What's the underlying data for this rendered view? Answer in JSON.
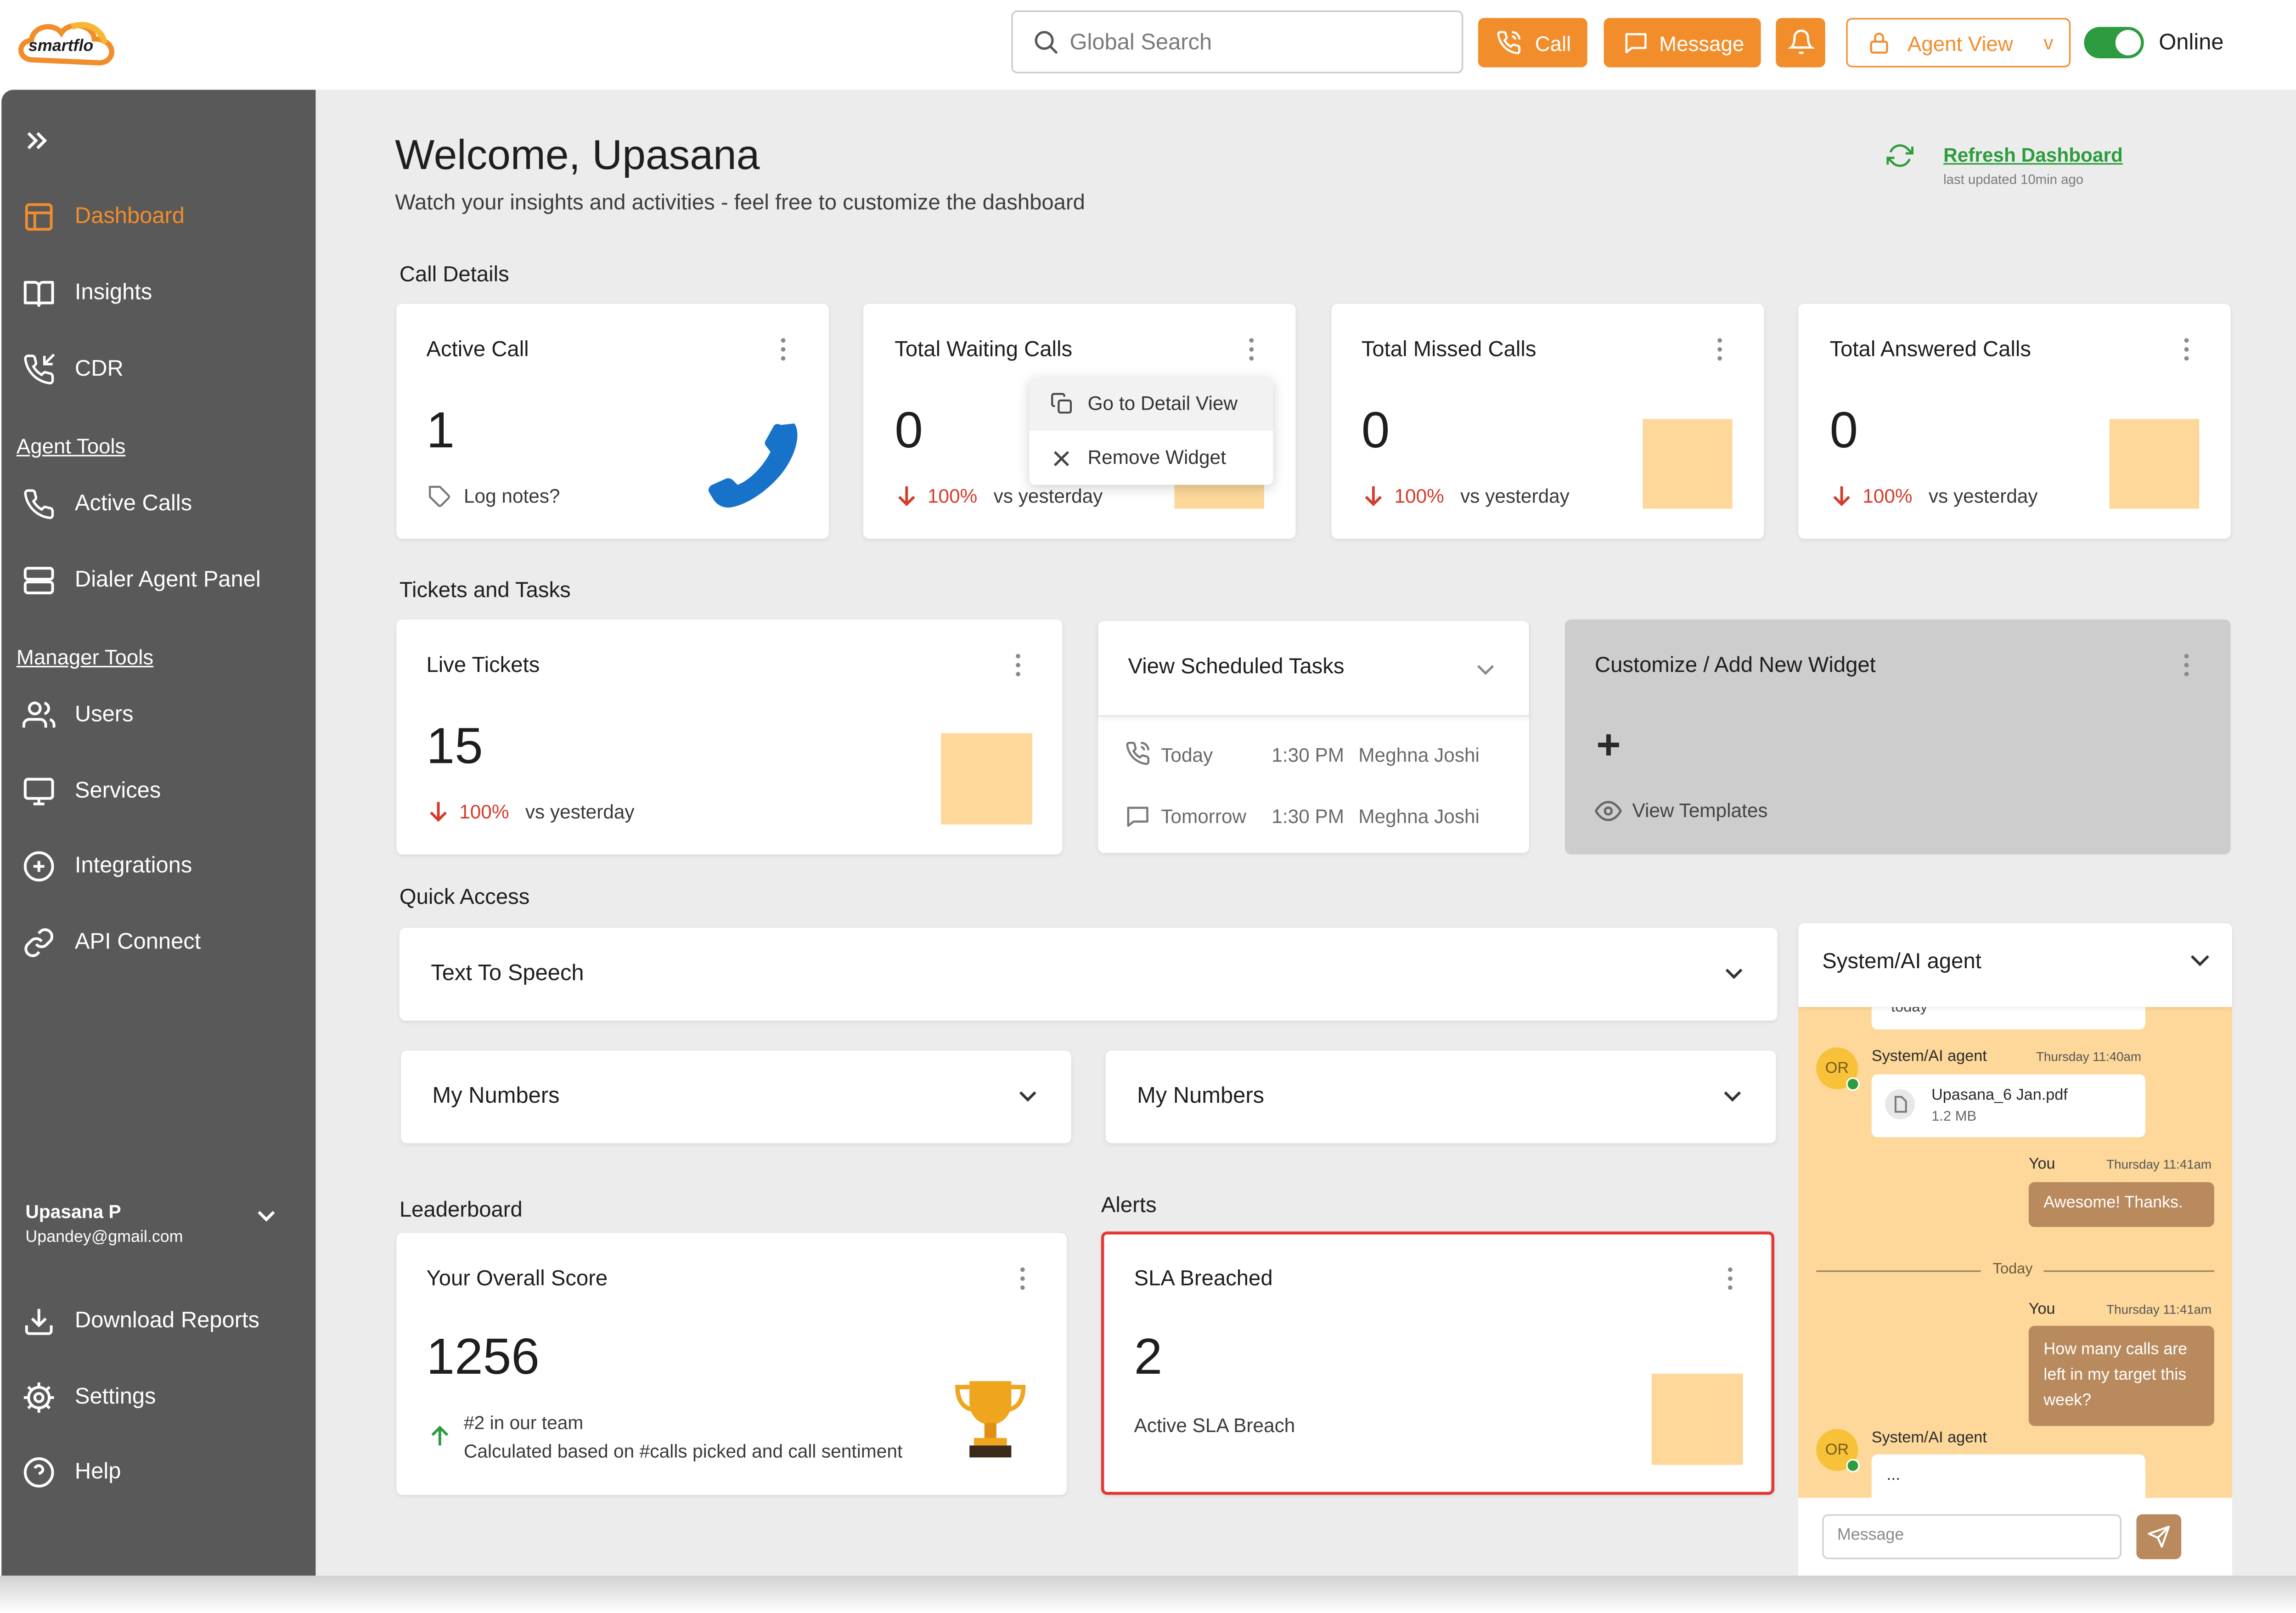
{
  "brand": {
    "logo_text": "smartflo",
    "accent": "#f28d2b",
    "sidebar_bg": "#595959",
    "placeholder_color": "#fdd89a",
    "chat_bg": "#fdd89a",
    "bubble_color": "#b98a5e",
    "online_color": "#2c9c3e",
    "alert_color": "#e53935"
  },
  "topbar": {
    "search_placeholder": "Global Search",
    "call_label": "Call",
    "message_label": "Message",
    "agent_view_label": "Agent View",
    "agent_view_caret": "v",
    "status_label": "Online"
  },
  "sidebar": {
    "items": [
      {
        "label": "Dashboard",
        "icon": "layout-icon",
        "active": true
      },
      {
        "label": "Insights",
        "icon": "book-icon"
      },
      {
        "label": "CDR",
        "icon": "phone-incoming-icon"
      },
      {
        "label": "Active Calls",
        "icon": "phone-icon"
      },
      {
        "label": "Dialer Agent Panel",
        "icon": "server-icon"
      },
      {
        "label": "Users",
        "icon": "users-icon"
      },
      {
        "label": "Services",
        "icon": "monitor-icon"
      },
      {
        "label": "Integrations",
        "icon": "plus-circle-icon"
      },
      {
        "label": "API Connect",
        "icon": "link-icon"
      }
    ],
    "section_agent_tools": "Agent Tools",
    "section_manager_tools": "Manager Tools",
    "user_name": "Upasana P",
    "user_email": "Upandey@gmail.com",
    "bottom_items": [
      {
        "label": "Download Reports",
        "icon": "download-icon"
      },
      {
        "label": "Settings",
        "icon": "gear-icon"
      },
      {
        "label": "Help",
        "icon": "help-icon"
      }
    ]
  },
  "header": {
    "welcome": "Welcome, Upasana",
    "subtitle": "Watch your insights and activities - feel free to customize the dashboard",
    "refresh_label": "Refresh Dashboard",
    "last_updated": "last updated 10min ago"
  },
  "call_details": {
    "section_title": "Call Details",
    "cards": [
      {
        "title": "Active Call",
        "value": "1",
        "footer": "Log notes?"
      },
      {
        "title": "Total Waiting Calls",
        "value": "0",
        "pct": "100%",
        "vs": "vs yesterday"
      },
      {
        "title": "Total Missed Calls",
        "value": "0",
        "pct": "100%",
        "vs": "vs yesterday"
      },
      {
        "title": "Total Answered Calls",
        "value": "0",
        "pct": "100%",
        "vs": "vs yesterday"
      }
    ],
    "context_menu": {
      "go_detail": "Go to Detail View",
      "remove": "Remove Widget"
    }
  },
  "tickets_tasks": {
    "section_title": "Tickets and Tasks",
    "live_tickets": {
      "title": "Live Tickets",
      "value": "15",
      "pct": "100%",
      "vs": "vs yesterday"
    },
    "scheduled": {
      "title": "View Scheduled Tasks",
      "rows": [
        {
          "day": "Today",
          "time": "1:30 PM",
          "name": "Meghna Joshi",
          "icon": "phone-call-icon"
        },
        {
          "day": "Tomorrow",
          "time": "1:30 PM",
          "name": "Meghna Joshi",
          "icon": "chat-icon"
        }
      ]
    },
    "customize": {
      "title": "Customize / Add New Widget",
      "plus": "+",
      "templates": "View Templates"
    }
  },
  "quick_access": {
    "section_title": "Quick Access",
    "tts": "Text To Speech",
    "numbers_left": "My Numbers",
    "numbers_right": "My Numbers"
  },
  "leaderboard": {
    "section_title": "Leaderboard",
    "title": "Your Overall Score",
    "value": "1256",
    "rank": "#2 in our team",
    "note": "Calculated based on #calls picked and call sentiment"
  },
  "alerts": {
    "section_title": "Alerts",
    "title": "SLA Breached",
    "value": "2",
    "caption": "Active SLA Breach"
  },
  "chat": {
    "title": "System/AI agent",
    "cut_text": "today",
    "msg1": {
      "avatar": "OR",
      "sender": "System/AI agent",
      "time": "Thursday 11:40am",
      "file_name": "Upasana_6 Jan.pdf",
      "file_size": "1.2 MB"
    },
    "msg2": {
      "sender": "You",
      "time": "Thursday 11:41am",
      "text": "Awesome! Thanks."
    },
    "divider": "Today",
    "msg3": {
      "sender": "You",
      "time": "Thursday 11:41am",
      "text": "How many calls are left in my target this week?"
    },
    "msg4": {
      "avatar": "OR",
      "sender": "System/AI agent",
      "text": "..."
    },
    "input_placeholder": "Message"
  }
}
